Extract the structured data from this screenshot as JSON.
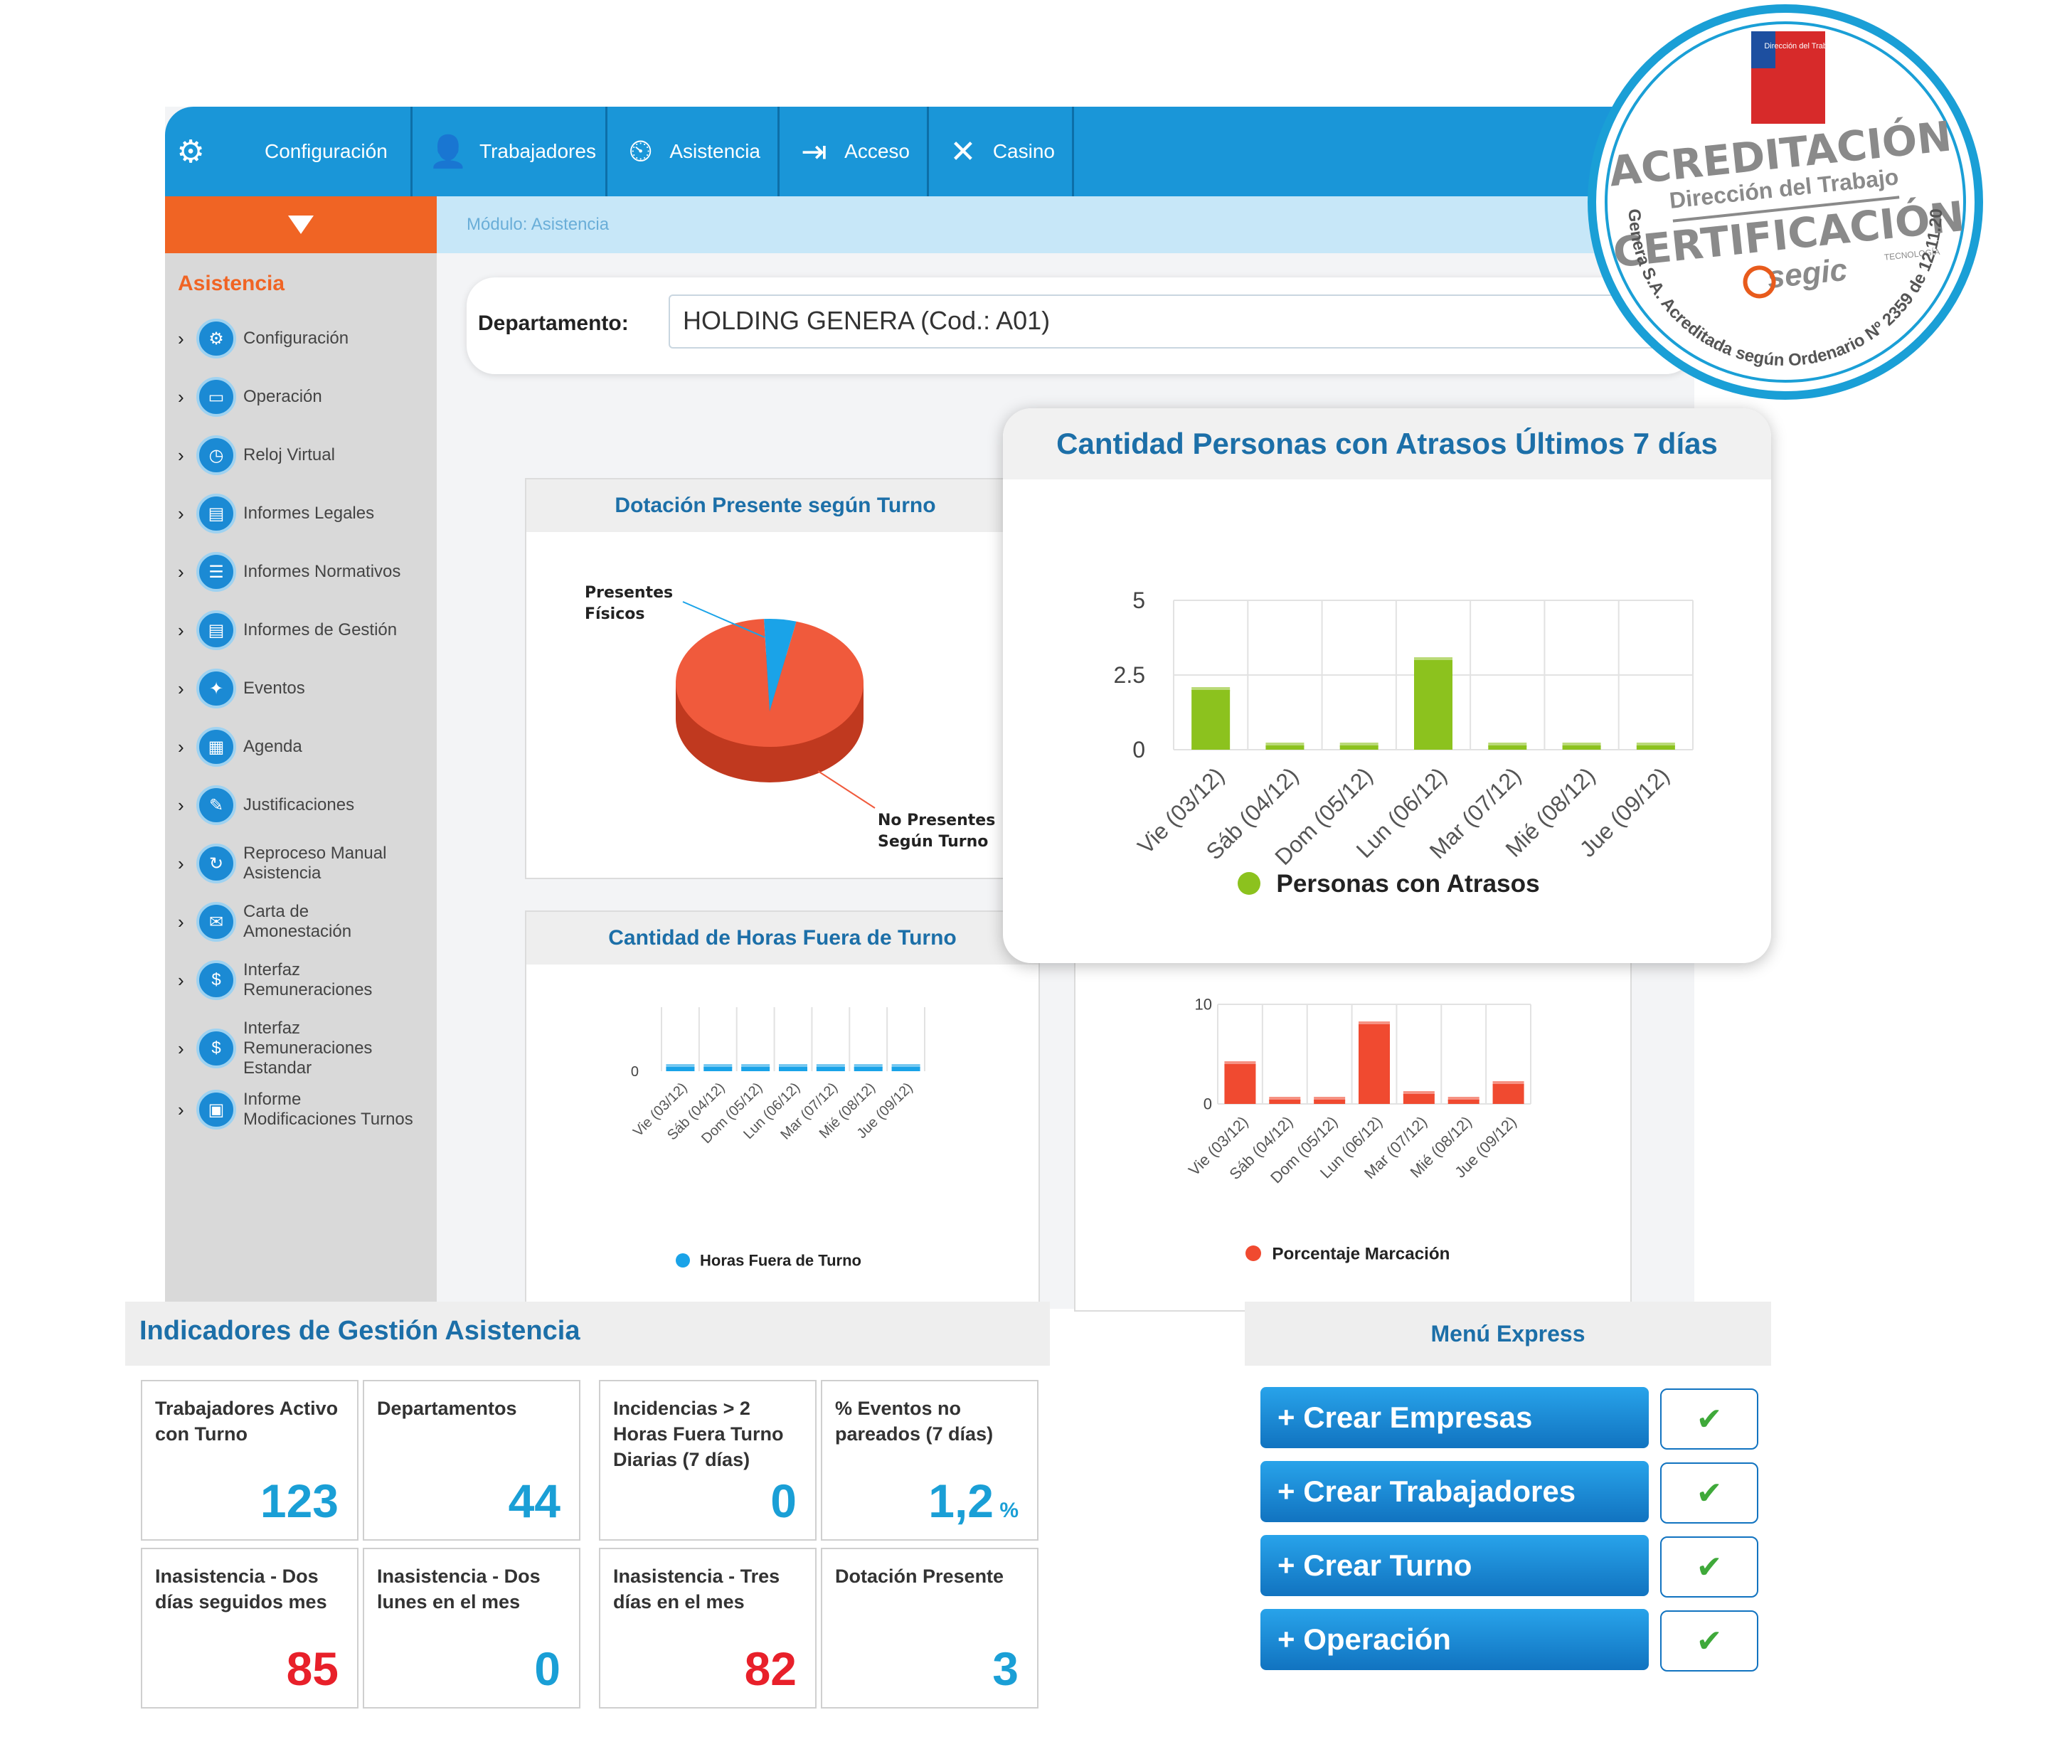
{
  "nav": {
    "items": [
      {
        "label": "Configuración",
        "icon": "gears-icon"
      },
      {
        "label": "Trabajadores",
        "icon": "worker-icon"
      },
      {
        "label": "Asistencia",
        "icon": "clock-card-icon"
      },
      {
        "label": "Acceso",
        "icon": "door-icon"
      },
      {
        "label": "Casino",
        "icon": "cutlery-icon"
      }
    ]
  },
  "sidebar": {
    "title": "Asistencia",
    "items": [
      {
        "label": "Configuración"
      },
      {
        "label": "Operación"
      },
      {
        "label": "Reloj Virtual"
      },
      {
        "label": "Informes Legales"
      },
      {
        "label": "Informes Normativos"
      },
      {
        "label": "Informes de Gestión"
      },
      {
        "label": "Eventos"
      },
      {
        "label": "Agenda"
      },
      {
        "label": "Justificaciones"
      },
      {
        "label": "Reproceso Manual Asistencia"
      },
      {
        "label": "Carta de Amonestación"
      },
      {
        "label": "Interfaz Remuneraciones"
      },
      {
        "label": "Interfaz Remuneraciones Estandar"
      },
      {
        "label": "Informe Modificaciones Turnos"
      }
    ]
  },
  "module": {
    "label": "Módulo: Asistencia"
  },
  "department": {
    "label": "Departamento:",
    "value": "HOLDING GENERA (Cod.: A01)"
  },
  "chart_data": [
    {
      "type": "pie",
      "title": "Dotación Presente según Turno",
      "slices": [
        {
          "label": "Presentes Físicos",
          "value": 3,
          "color": "#1aa3e8"
        },
        {
          "label": "No Presentes Según Turno",
          "value": 97,
          "color": "#f05a3c"
        }
      ]
    },
    {
      "type": "bar",
      "title": "Cantidad Personas con Atrasos Últimos 7 días",
      "categories": [
        "Vie (03/12)",
        "Sáb (04/12)",
        "Dom (05/12)",
        "Lun (06/12)",
        "Mar (07/12)",
        "Mié (08/12)",
        "Jue (09/12)"
      ],
      "series": [
        {
          "name": "Personas con Atrasos",
          "values": [
            2,
            0,
            0,
            3,
            0,
            0,
            0
          ],
          "color": "#8cc21e"
        }
      ],
      "yticks": [
        "5",
        "2.5",
        "0"
      ],
      "ylim": [
        0,
        5
      ]
    },
    {
      "type": "bar",
      "title": "Cantidad de Horas Fuera de Turno",
      "categories": [
        "Vie (03/12)",
        "Sáb (04/12)",
        "Dom (05/12)",
        "Lun (06/12)",
        "Mar (07/12)",
        "Mié (08/12)",
        "Jue (09/12)"
      ],
      "series": [
        {
          "name": "Horas Fuera de Turno",
          "values": [
            0,
            0,
            0,
            0,
            0,
            0,
            0
          ],
          "color": "#1aa3e8"
        }
      ],
      "yticks": [
        "0"
      ]
    },
    {
      "type": "bar",
      "categories": [
        "Vie (03/12)",
        "Sáb (04/12)",
        "Dom (05/12)",
        "Lun (06/12)",
        "Mar (07/12)",
        "Mié (08/12)",
        "Jue (09/12)"
      ],
      "series": [
        {
          "name": "Porcentaje Marcación",
          "values": [
            4,
            0.3,
            0.3,
            8,
            1,
            0.3,
            2
          ],
          "color": "#f04a30"
        }
      ],
      "yticks": [
        "10",
        "0"
      ],
      "ylim": [
        0,
        10
      ]
    }
  ],
  "indicators": {
    "title": "Indicadores de Gestión Asistencia",
    "cards": [
      {
        "label": "Trabajadores Activo con Turno",
        "value": "123",
        "color": "#1a9fd6"
      },
      {
        "label": "Departamentos",
        "value": "44",
        "color": "#1a9fd6"
      },
      {
        "label": "Incidencias > 2 Horas Fuera Turno Diarias (7 días)",
        "value": "0",
        "color": "#1a9fd6"
      },
      {
        "label": "% Eventos no pareados (7 días)",
        "value": "1,2",
        "unit": "%",
        "color": "#1a9fd6"
      },
      {
        "label": "Inasistencia - Dos días seguidos mes",
        "value": "85",
        "color": "#e8202a"
      },
      {
        "label": "Inasistencia - Dos lunes en el mes",
        "value": "0",
        "color": "#1a9fd6"
      },
      {
        "label": "Inasistencia - Tres días en el mes",
        "value": "82",
        "color": "#e8202a"
      },
      {
        "label": "Dotación Presente",
        "value": "3",
        "color": "#1a9fd6"
      }
    ]
  },
  "menu": {
    "title": "Menú Express",
    "buttons": [
      {
        "label": "+ Crear Empresas"
      },
      {
        "label": "+ Crear Trabajadores"
      },
      {
        "label": "+ Crear Turno"
      },
      {
        "label": "+ Operación"
      }
    ],
    "check_icon": "checkmark-icon"
  },
  "seal": {
    "top_text": "ACREDITACIÓN",
    "sub_text": "Dirección del Trabajo",
    "main_text": "CERTIFICACIÓN",
    "brand": "segic",
    "brand_tag": "TECNOLOGÍA",
    "ring_text": "Genera S.A. Acreditada según Ordenario Nº 2359 de 12.11.2021",
    "badge_text": "Dirección del Trabajo",
    "color": "#1a9fd6"
  }
}
